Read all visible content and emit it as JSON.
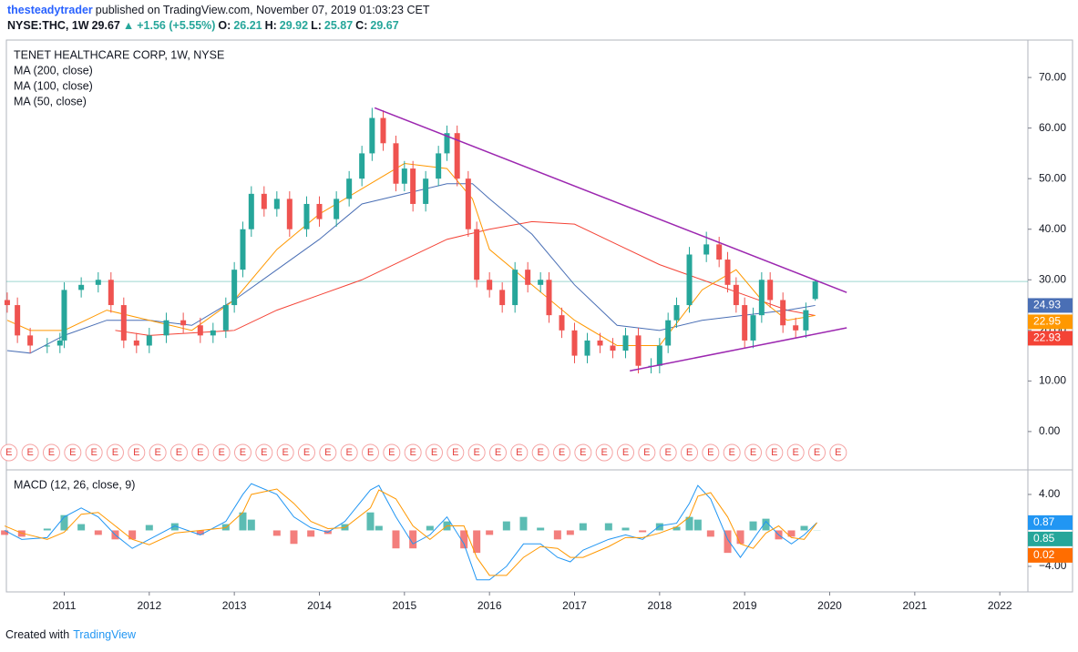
{
  "header": {
    "author": "thesteadytrader",
    "published": "published on TradingView.com, November 07, 2019 01:03:23 CET",
    "symbol": "NYSE:THC, 1W",
    "last": "29.67",
    "arrow": "▲",
    "change": "+1.56 (+5.55%)",
    "o_label": "O:",
    "o": "26.21",
    "h_label": "H:",
    "h": "29.92",
    "l_label": "L:",
    "l": "25.87",
    "c_label": "C:",
    "c": "29.67"
  },
  "footer": {
    "created": "Created with",
    "brand": "TradingView"
  },
  "chart_data": [
    {
      "type": "candlestick",
      "title": "TENET HEALTHCARE CORP, 1W, NYSE",
      "x": [
        2010.33,
        2010.45,
        2010.6,
        2010.8,
        2010.95,
        2011.0,
        2011.2,
        2011.4,
        2011.55,
        2011.7,
        2011.85,
        2012.0,
        2012.2,
        2012.4,
        2012.6,
        2012.75,
        2012.9,
        2013.0,
        2013.1,
        2013.2,
        2013.35,
        2013.5,
        2013.65,
        2013.85,
        2014.0,
        2014.2,
        2014.35,
        2014.5,
        2014.62,
        2014.75,
        2014.9,
        2015.0,
        2015.1,
        2015.25,
        2015.4,
        2015.5,
        2015.62,
        2015.75,
        2015.85,
        2016.0,
        2016.15,
        2016.3,
        2016.45,
        2016.6,
        2016.7,
        2016.85,
        2017.0,
        2017.15,
        2017.3,
        2017.45,
        2017.6,
        2017.75,
        2017.9,
        2018.0,
        2018.1,
        2018.2,
        2018.35,
        2018.55,
        2018.7,
        2018.8,
        2018.9,
        2019.0,
        2019.1,
        2019.2,
        2019.3,
        2019.45,
        2019.6,
        2019.72,
        2019.83
      ],
      "open": [
        26,
        25,
        19,
        17,
        17,
        18,
        28,
        29,
        30,
        25,
        18,
        17,
        19,
        22,
        21,
        19,
        20,
        25,
        32,
        40,
        47,
        44,
        46,
        40,
        45,
        42,
        46,
        50,
        55,
        62,
        57,
        49,
        52,
        45,
        50,
        55,
        59,
        50,
        40,
        30,
        28,
        25,
        32,
        29,
        30,
        23,
        20,
        15,
        18,
        17,
        16,
        19,
        13,
        13,
        17,
        22,
        25,
        35,
        37,
        34,
        29,
        25,
        18,
        23,
        30,
        26,
        21,
        20,
        26.21
      ],
      "high": [
        27.5,
        26.5,
        20.5,
        18.5,
        19.5,
        29.5,
        30.5,
        31.5,
        31.5,
        26.5,
        19.5,
        20.5,
        23.5,
        23.5,
        22.5,
        21.5,
        26.5,
        33.5,
        41.5,
        48.5,
        48.5,
        47.5,
        47.5,
        46.5,
        46.5,
        47.5,
        51.5,
        56.5,
        64,
        63.5,
        58.5,
        53.5,
        53.5,
        51.5,
        56.5,
        60.5,
        60.5,
        51.5,
        41.5,
        31.5,
        29.5,
        33.5,
        33.5,
        31.5,
        31.5,
        24.5,
        21.5,
        19.5,
        19.5,
        18.5,
        20.5,
        20.5,
        14.5,
        18.5,
        23.5,
        26.5,
        36.5,
        39.5,
        38.5,
        35.5,
        30.5,
        26.5,
        24.5,
        31.5,
        31.5,
        27.5,
        22.5,
        25.5,
        29.92
      ],
      "low": [
        23.5,
        17.5,
        15.5,
        15.5,
        15.5,
        16.5,
        26.5,
        27.5,
        23.5,
        16.5,
        15.5,
        15.5,
        17.5,
        19.5,
        17.5,
        17.5,
        18.5,
        23.5,
        30.5,
        38.5,
        42.5,
        42.5,
        38.5,
        38.5,
        40.5,
        40.5,
        44.5,
        48.5,
        53.5,
        55.5,
        47.5,
        47.5,
        43.5,
        43.5,
        48.5,
        53.5,
        48.5,
        38.5,
        28.5,
        26.5,
        23.5,
        23.5,
        27.5,
        27.5,
        21.5,
        18.5,
        13.5,
        13.5,
        15.5,
        14.5,
        14.5,
        11.5,
        11.5,
        11.5,
        15.5,
        20.5,
        23.5,
        33.5,
        32.5,
        27.5,
        23.5,
        16.5,
        16.5,
        21.5,
        24.5,
        19.5,
        18.5,
        18.5,
        25.87
      ],
      "close": [
        25,
        19,
        17,
        17,
        18,
        28,
        29,
        30,
        25,
        18,
        17,
        19,
        22,
        21,
        19,
        20,
        25,
        32,
        40,
        47,
        44,
        46,
        40,
        45,
        42,
        46,
        50,
        55,
        62,
        57,
        49,
        52,
        45,
        50,
        55,
        59,
        50,
        40,
        30,
        28,
        25,
        32,
        29,
        30,
        23,
        20,
        15,
        18,
        17,
        16,
        19,
        13,
        13,
        17,
        22,
        25,
        35,
        37,
        34,
        29,
        25,
        18,
        23,
        30,
        26,
        21,
        20,
        24,
        29.67
      ],
      "up_color": "#26a69a",
      "down_color": "#ef5350",
      "series": [
        {
          "name": "MA (200, close)",
          "color": "#f44336",
          "badge": "22.93",
          "x": [
            2011.6,
            2012.0,
            2013.0,
            2013.5,
            2014.0,
            2014.5,
            2015.0,
            2015.5,
            2016.0,
            2016.5,
            2017.0,
            2017.5,
            2018.0,
            2018.5,
            2019.0,
            2019.5,
            2019.83
          ],
          "values": [
            20,
            19,
            20,
            24,
            27,
            30,
            34,
            38,
            40,
            41.5,
            41,
            37,
            33,
            30,
            27,
            24,
            22.93
          ]
        },
        {
          "name": "MA (100, close)",
          "color": "#4a6fb5",
          "badge": "24.93",
          "x": [
            2010.33,
            2010.6,
            2011.0,
            2011.5,
            2012.0,
            2012.5,
            2013.0,
            2013.5,
            2014.0,
            2014.5,
            2015.0,
            2015.5,
            2015.8,
            2016.0,
            2016.5,
            2017.0,
            2017.5,
            2018.0,
            2018.5,
            2019.0,
            2019.5,
            2019.83
          ],
          "values": [
            16,
            15.5,
            19,
            22,
            22,
            21,
            26,
            32,
            38,
            45,
            47,
            49,
            49,
            46,
            39,
            29,
            21,
            20,
            22,
            23,
            24,
            24.93
          ]
        },
        {
          "name": "MA (50, close)",
          "color": "#ff9800",
          "badge": "22.95",
          "x": [
            2010.33,
            2010.6,
            2011.0,
            2011.5,
            2012.0,
            2012.5,
            2013.0,
            2013.5,
            2014.0,
            2014.5,
            2015.0,
            2015.5,
            2015.8,
            2016.0,
            2016.5,
            2017.0,
            2017.5,
            2018.0,
            2018.5,
            2018.9,
            2019.2,
            2019.5,
            2019.83
          ],
          "values": [
            22,
            20,
            20,
            24,
            22,
            20,
            26,
            36,
            43,
            48,
            53,
            52,
            46,
            36,
            29,
            22,
            17,
            17,
            28,
            32,
            26,
            22,
            22.95
          ]
        }
      ],
      "trendlines": [
        {
          "color": "#9c27b0",
          "x": [
            2014.65,
            2020.2
          ],
          "values": [
            64,
            27.5
          ]
        },
        {
          "color": "#9c27b0",
          "x": [
            2017.65,
            2020.2
          ],
          "values": [
            12,
            20.5
          ]
        }
      ],
      "earnings": {
        "label": "E",
        "x": [
          2010.35,
          2010.6,
          2010.85,
          2011.1,
          2011.35,
          2011.6,
          2011.85,
          2012.1,
          2012.35,
          2012.6,
          2012.85,
          2013.1,
          2013.35,
          2013.6,
          2013.85,
          2014.1,
          2014.35,
          2014.6,
          2014.85,
          2015.1,
          2015.35,
          2015.6,
          2015.85,
          2016.1,
          2016.35,
          2016.6,
          2016.85,
          2017.1,
          2017.35,
          2017.6,
          2017.85,
          2018.1,
          2018.35,
          2018.6,
          2018.85,
          2019.1,
          2019.35,
          2019.6,
          2019.85,
          2020.1
        ]
      },
      "xlim": [
        2010.32,
        2022.33
      ],
      "ylim": [
        -7.4,
        77.4
      ],
      "yticks": [
        {
          "value": 70,
          "label": "70.00"
        },
        {
          "value": 60,
          "label": "60.00"
        },
        {
          "value": 50,
          "label": "50.00"
        },
        {
          "value": 40,
          "label": "40.00"
        },
        {
          "value": 30,
          "label": "30.00"
        },
        {
          "value": 20,
          "label": "20.00"
        },
        {
          "value": 10,
          "label": "10.00"
        },
        {
          "value": 0,
          "label": "0.00"
        }
      ]
    },
    {
      "type": "macd",
      "title": "MACD (12, 26, close, 9)",
      "x": [
        2010.3,
        2010.5,
        2010.8,
        2011.0,
        2011.2,
        2011.4,
        2011.6,
        2011.8,
        2012.0,
        2012.3,
        2012.6,
        2012.9,
        2013.1,
        2013.2,
        2013.5,
        2013.7,
        2013.9,
        2014.1,
        2014.3,
        2014.6,
        2014.7,
        2014.9,
        2015.1,
        2015.3,
        2015.5,
        2015.7,
        2015.85,
        2016.0,
        2016.2,
        2016.4,
        2016.6,
        2016.8,
        2016.95,
        2017.1,
        2017.4,
        2017.6,
        2017.8,
        2018.0,
        2018.2,
        2018.35,
        2018.45,
        2018.6,
        2018.8,
        2018.95,
        2019.1,
        2019.25,
        2019.4,
        2019.55,
        2019.7,
        2019.85
      ],
      "macd": {
        "color": "#2196f3",
        "badge": "0.87",
        "badge_color": "#2196f3",
        "values": [
          0,
          -1,
          -0.8,
          1.5,
          2.5,
          1.5,
          -0.5,
          -2,
          -1,
          0.5,
          -0.5,
          1,
          4,
          5.2,
          4,
          1.5,
          0.3,
          -0.2,
          1,
          4.5,
          5,
          1.5,
          -1.5,
          -0.5,
          1.5,
          -1.5,
          -5.5,
          -5.5,
          -4,
          -1.5,
          -1.5,
          -3,
          -3.5,
          -2.2,
          -1,
          -0.5,
          -1,
          0.5,
          0.8,
          3,
          5,
          3.5,
          -1,
          -3,
          -1,
          1,
          -0.5,
          -1.5,
          -0.5,
          0.87
        ]
      },
      "signal": {
        "color": "#ff9800",
        "badge": "0.85",
        "badge_color": "#26a69a",
        "values": [
          0.5,
          -0.3,
          -1,
          -0.2,
          1.8,
          2,
          0.5,
          -1,
          -1.6,
          -0.3,
          0,
          0.3,
          2,
          4,
          4.6,
          3,
          1,
          0.2,
          0.3,
          2.5,
          4.5,
          3.5,
          0.5,
          -1,
          0.5,
          0.5,
          -3,
          -5,
          -5,
          -3,
          -1.8,
          -2,
          -3,
          -3,
          -1.8,
          -0.8,
          -0.8,
          -0.3,
          0.4,
          1.5,
          3.8,
          4.2,
          1.5,
          -1.5,
          -2,
          -0.3,
          0.5,
          -0.8,
          -1,
          0.85
        ]
      },
      "histogram": {
        "up_color": "#26a69a",
        "down_color": "#ef5350",
        "badge": "0.02",
        "badge_color": "#ff6d00",
        "values": [
          -0.5,
          -0.7,
          0.2,
          1.7,
          0.7,
          -0.5,
          -1,
          -1,
          0.6,
          0.8,
          -0.5,
          0.7,
          2,
          1.2,
          -0.6,
          -1.5,
          -0.7,
          -0.4,
          0.7,
          2,
          0.5,
          -2,
          -2,
          0.5,
          1,
          -2,
          -2.5,
          -0.5,
          1,
          1.5,
          0.3,
          -1,
          -0.5,
          0.8,
          0.8,
          0.3,
          -0.2,
          0.8,
          0.4,
          1.5,
          1.2,
          -0.7,
          -2.5,
          -1.5,
          1,
          1.3,
          -1,
          -0.7,
          0.5,
          0.02
        ]
      },
      "xlim": [
        2010.32,
        2022.33
      ],
      "ylim": [
        -6.84,
        6.63
      ],
      "yticks": [
        {
          "value": 4,
          "label": "4.00"
        },
        {
          "value": -4,
          "label": "−4.00"
        }
      ],
      "xticks": [
        2011,
        2012,
        2013,
        2014,
        2015,
        2016,
        2017,
        2018,
        2019,
        2020,
        2021,
        2022
      ]
    }
  ]
}
